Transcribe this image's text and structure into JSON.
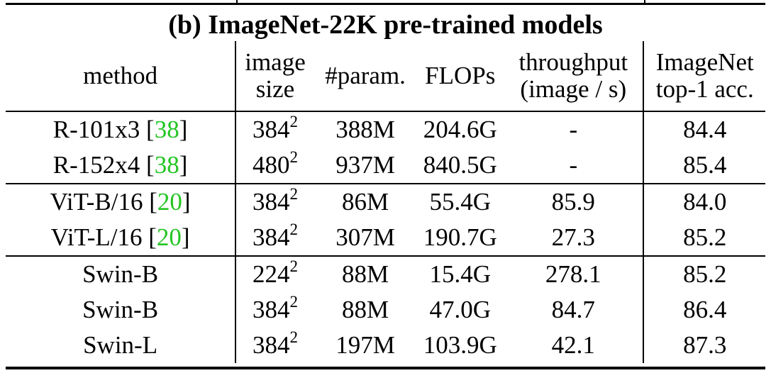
{
  "title": "(b) ImageNet-22K pre-trained models",
  "headers": {
    "method": "method",
    "image_size": [
      "image",
      "size"
    ],
    "params": "#param.",
    "flops": "FLOPs",
    "throughput": [
      "throughput",
      "(image / s)"
    ],
    "acc": [
      "ImageNet",
      "top-1 acc."
    ]
  },
  "rows": [
    {
      "method": "R-101x3 [",
      "cite": "38",
      "close": "]",
      "size": "384",
      "exp": "2",
      "params": "388M",
      "flops": "204.6G",
      "throughput": "-",
      "acc": "84.4"
    },
    {
      "method": "R-152x4 [",
      "cite": "38",
      "close": "]",
      "size": "480",
      "exp": "2",
      "params": "937M",
      "flops": "840.5G",
      "throughput": "-",
      "acc": "85.4"
    },
    {
      "method": "ViT-B/16 [",
      "cite": "20",
      "close": "]",
      "size": "384",
      "exp": "2",
      "params": "86M",
      "flops": "55.4G",
      "throughput": "85.9",
      "acc": "84.0"
    },
    {
      "method": "ViT-L/16 [",
      "cite": "20",
      "close": "]",
      "size": "384",
      "exp": "2",
      "params": "307M",
      "flops": "190.7G",
      "throughput": "27.3",
      "acc": "85.2"
    },
    {
      "method": "Swin-B",
      "cite": "",
      "close": "",
      "size": "224",
      "exp": "2",
      "params": "88M",
      "flops": "15.4G",
      "throughput": "278.1",
      "acc": "85.2"
    },
    {
      "method": "Swin-B",
      "cite": "",
      "close": "",
      "size": "384",
      "exp": "2",
      "params": "88M",
      "flops": "47.0G",
      "throughput": "84.7",
      "acc": "86.4"
    },
    {
      "method": "Swin-L",
      "cite": "",
      "close": "",
      "size": "384",
      "exp": "2",
      "params": "197M",
      "flops": "103.9G",
      "throughput": "42.1",
      "acc": "87.3"
    }
  ],
  "colors": {
    "citation": "#22c522",
    "text": "#000000"
  }
}
